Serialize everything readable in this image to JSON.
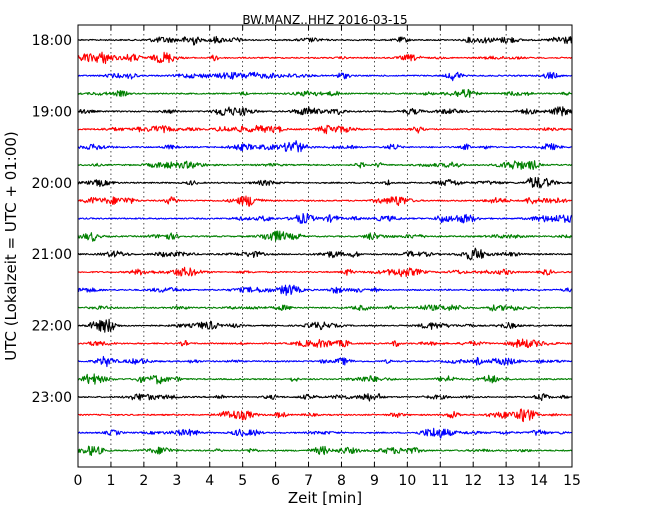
{
  "chart_data": {
    "type": "line",
    "title": "BW.MANZ..HHZ 2016-03-15",
    "xlabel": "Zeit  [min]",
    "ylabel": "UTC (Lokalzeit = UTC + 01:00)",
    "xlim": [
      0,
      15
    ],
    "x_ticks": [
      "0",
      "1",
      "2",
      "3",
      "4",
      "5",
      "6",
      "7",
      "8",
      "9",
      "10",
      "11",
      "12",
      "13",
      "14",
      "15"
    ],
    "y_tick_labels": [
      "18:00",
      "19:00",
      "20:00",
      "21:00",
      "22:00",
      "23:00"
    ],
    "trace_start_times": [
      "18:00",
      "18:15",
      "18:30",
      "18:45",
      "19:00",
      "19:15",
      "19:30",
      "19:45",
      "20:00",
      "20:15",
      "20:30",
      "20:45",
      "21:00",
      "21:15",
      "21:30",
      "21:45",
      "22:00",
      "22:15",
      "22:30",
      "22:45",
      "23:00",
      "23:15",
      "23:30",
      "23:45"
    ],
    "trace_duration_min": 15,
    "trace_colors": [
      "#000000",
      "#ff0000",
      "#0000ff",
      "#008000"
    ],
    "grid": "vertical dotted lines at each minute"
  }
}
